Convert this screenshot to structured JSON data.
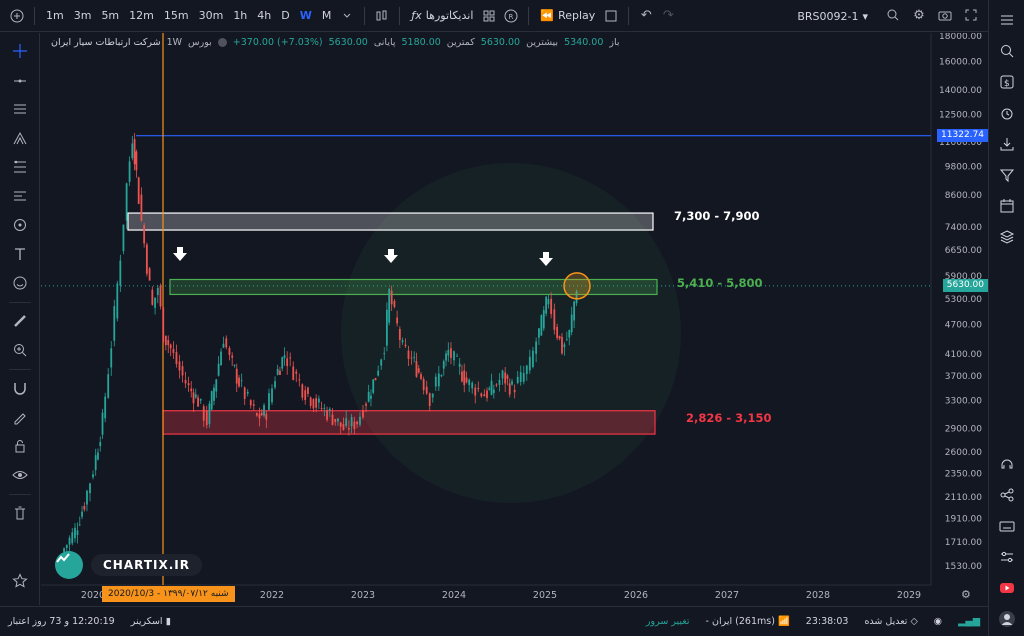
{
  "toolbar": {
    "timeframes": [
      "1m",
      "3m",
      "5m",
      "12m",
      "15m",
      "30m",
      "1h",
      "4h",
      "D",
      "W",
      "M"
    ],
    "active_timeframe": "W",
    "indicators_label": "اندیکاتورها",
    "replay_label": "Replay",
    "symbol": "BRS0092-1"
  },
  "legend": {
    "company": "شرکت ارتباطات سیار ایران",
    "interval": "1W",
    "exchange": "بورس",
    "open_label": "باز",
    "open_value": "5340.00",
    "high_label": "بیشترین",
    "high_value": "5630.00",
    "low_label": "کمترین",
    "low_value": "5180.00",
    "close_label": "پایانی",
    "close_value": "5630.00",
    "change": "+370.00 (+7.03%)"
  },
  "zones": {
    "white_label": "7,300 - 7,900",
    "green_label": "5,410 - 5,800",
    "red_label": "2,826 - 3,150"
  },
  "price_tags": {
    "blue_line": "11322.74",
    "last_price": "5630.00"
  },
  "date_tag": "شنبه ۱۳۹۹/۰۷/۱۲ - 2020/10/3",
  "logo_text": "CHARTIX.IR",
  "chart_data": {
    "type": "candlestick",
    "yscale": "log",
    "y_ticks": [
      1530,
      1710,
      1910,
      2110,
      2350,
      2600,
      2900,
      3300,
      3700,
      4100,
      4700,
      5300,
      5900,
      6650,
      7400,
      8600,
      9800,
      11000,
      12500,
      14000,
      16000,
      18000
    ],
    "y_tick_labels": [
      "1530.00",
      "1710.00",
      "1910.00",
      "2110.00",
      "2350.00",
      "2600.00",
      "2900.00",
      "3300.00",
      "3700.00",
      "4100.00",
      "4700.00",
      "5300.00",
      "5900.00",
      "6650.00",
      "7400.00",
      "8600.00",
      "9800.00",
      "11000.00",
      "12500.00",
      "14000.00",
      "16000.00",
      "18000.00"
    ],
    "x_ticks": [
      "2020",
      "2022",
      "2023",
      "2024",
      "2025",
      "2026",
      "2027",
      "2028",
      "2029"
    ],
    "price_path": [
      [
        2019.7,
        1630
      ],
      [
        2019.85,
        1800
      ],
      [
        2019.95,
        2050
      ],
      [
        2020.05,
        2400
      ],
      [
        2020.15,
        3000
      ],
      [
        2020.25,
        4300
      ],
      [
        2020.35,
        6500
      ],
      [
        2020.42,
        9000
      ],
      [
        2020.48,
        11300
      ],
      [
        2020.52,
        9500
      ],
      [
        2020.58,
        7600
      ],
      [
        2020.64,
        6200
      ],
      [
        2020.7,
        5100
      ],
      [
        2020.76,
        5600
      ],
      [
        2020.82,
        4500
      ],
      [
        2020.9,
        4200
      ],
      [
        2021.0,
        3800
      ],
      [
        2021.1,
        3500
      ],
      [
        2021.2,
        3300
      ],
      [
        2021.3,
        3000
      ],
      [
        2021.4,
        3700
      ],
      [
        2021.48,
        4450
      ],
      [
        2021.55,
        4000
      ],
      [
        2021.65,
        3600
      ],
      [
        2021.75,
        3300
      ],
      [
        2021.85,
        3050
      ],
      [
        2021.95,
        3150
      ],
      [
        2022.05,
        3700
      ],
      [
        2022.15,
        4100
      ],
      [
        2022.25,
        3800
      ],
      [
        2022.35,
        3500
      ],
      [
        2022.5,
        3250
      ],
      [
        2022.65,
        3100
      ],
      [
        2022.8,
        2900
      ],
      [
        2022.95,
        3000
      ],
      [
        2023.05,
        3300
      ],
      [
        2023.15,
        3700
      ],
      [
        2023.25,
        4300
      ],
      [
        2023.3,
        5450
      ],
      [
        2023.36,
        4900
      ],
      [
        2023.45,
        4200
      ],
      [
        2023.55,
        4000
      ],
      [
        2023.65,
        3700
      ],
      [
        2023.75,
        3350
      ],
      [
        2023.85,
        3700
      ],
      [
        2023.95,
        4150
      ],
      [
        2024.05,
        3900
      ],
      [
        2024.15,
        3600
      ],
      [
        2024.25,
        3500
      ],
      [
        2024.35,
        3400
      ],
      [
        2024.45,
        3500
      ],
      [
        2024.55,
        3700
      ],
      [
        2024.65,
        3500
      ],
      [
        2024.75,
        3650
      ],
      [
        2024.85,
        3900
      ],
      [
        2024.92,
        4350
      ],
      [
        2025.0,
        4900
      ],
      [
        2025.05,
        5400
      ],
      [
        2025.12,
        4700
      ],
      [
        2025.2,
        4200
      ],
      [
        2025.28,
        4500
      ],
      [
        2025.36,
        5630
      ]
    ]
  }
}
